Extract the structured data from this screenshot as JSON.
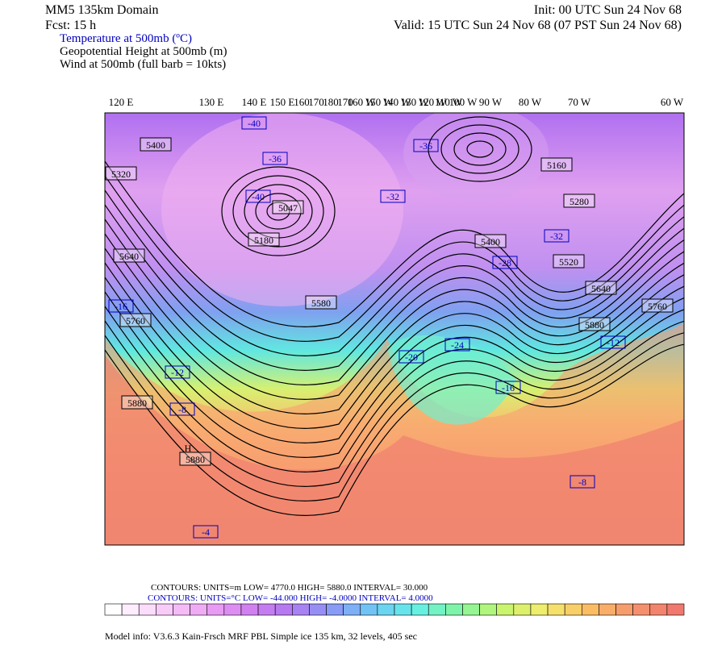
{
  "header": {
    "domain": "MM5 135km Domain",
    "init": "Init: 00 UTC Sun 24 Nov 68",
    "forecast": "Fcst:    15 h",
    "valid": "Valid: 15 UTC Sun 24 Nov 68 (07 PST Sun 24 Nov 68)",
    "fields": [
      "Temperature at 500mb (ºC)",
      "Geopotential Height at 500mb (m)",
      "Wind at 500mb (full barb = 10kts)"
    ]
  },
  "map": {
    "longitude_labels": [
      "120 E",
      "130 E",
      "140 E",
      "150 E",
      "160",
      "170",
      "180",
      "170",
      "160 W",
      "150 W",
      "140 W",
      "130 W",
      "120 W",
      "110 W",
      "100 W",
      "90 W",
      "80 W",
      "70 W",
      "60 W"
    ],
    "height_labels": [
      "5400",
      "5320",
      "5047",
      "5180",
      "5640",
      "5580",
      "5760",
      "5880",
      "5880",
      "5400",
      "5160",
      "5280",
      "5520",
      "5640",
      "5760",
      "5880"
    ],
    "high_marker": "H",
    "temperature_labels": [
      "-40",
      "-36",
      "-40",
      "-32",
      "-28",
      "-24",
      "-20",
      "-16",
      "-12",
      "-8",
      "-8",
      "-4",
      "-12",
      "-16",
      "-36",
      "-32"
    ]
  },
  "footer": {
    "contours_height": "CONTOURS:  UNITS=m   LOW=  4770.0        HIGH=  5880.0        INTERVAL=   30.000",
    "contours_temperature": "CONTOURS:  UNITS=°C  LOW= -44.000       HIGH= -4.0000        INTERVAL=   4.0000",
    "model_info": "Model info: V3.6.3 Kain-Frsch MRF PBL     Simple ice   135 km,  32 levels,  405 sec"
  }
}
